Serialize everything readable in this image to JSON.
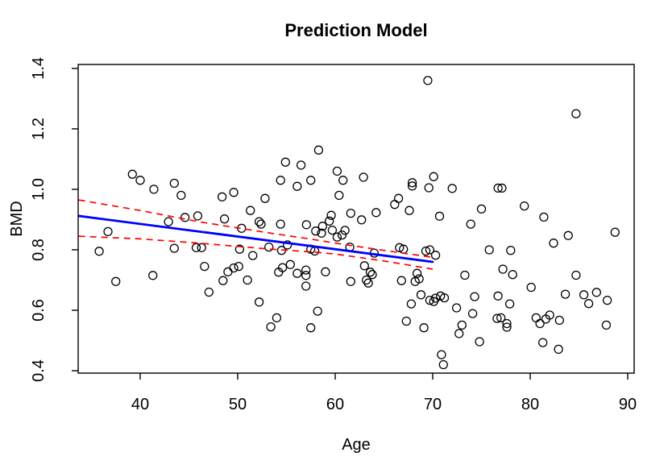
{
  "page": {
    "background": "#ffffff"
  },
  "chart_data": {
    "type": "scatter",
    "title": "Prediction Model",
    "xlabel": "Age",
    "ylabel": "BMD",
    "xlim": [
      33.64,
      90.66
    ],
    "ylim": [
      0.392,
      1.413
    ],
    "grid": false,
    "legend": "none",
    "x_ticks": [
      40,
      50,
      60,
      70,
      80,
      90
    ],
    "x_tick_labels": [
      "40",
      "50",
      "60",
      "70",
      "80",
      "90"
    ],
    "y_ticks": [
      0.4,
      0.6,
      0.8,
      1.0,
      1.2,
      1.4
    ],
    "y_tick_labels": [
      "0.4",
      "0.6",
      "0.8",
      "1.0",
      "1.2",
      "1.4"
    ],
    "marker": {
      "shape": "open-circle",
      "radius": 5,
      "color": "#000000"
    },
    "points": [
      [
        39.2,
        1.05
      ],
      [
        40.0,
        1.03
      ],
      [
        41.4,
        1.0
      ],
      [
        43.5,
        1.02
      ],
      [
        44.2,
        0.98
      ],
      [
        48.4,
        0.975
      ],
      [
        49.6,
        0.99
      ],
      [
        51.3,
        0.93
      ],
      [
        52.8,
        0.97
      ],
      [
        69.5,
        1.36
      ],
      [
        58.3,
        1.13
      ],
      [
        54.9,
        1.09
      ],
      [
        56.5,
        1.08
      ],
      [
        54.4,
        1.03
      ],
      [
        56.1,
        1.01
      ],
      [
        57.5,
        1.03
      ],
      [
        60.2,
        1.06
      ],
      [
        60.8,
        1.03
      ],
      [
        62.9,
        1.04
      ],
      [
        60.4,
        0.98
      ],
      [
        66.5,
        0.97
      ],
      [
        67.9,
        1.022
      ],
      [
        67.9,
        1.011
      ],
      [
        69.6,
        1.005
      ],
      [
        70.1,
        1.042
      ],
      [
        66.1,
        0.95
      ],
      [
        67.6,
        0.93
      ],
      [
        72.0,
        1.003
      ],
      [
        84.7,
        1.25
      ],
      [
        76.7,
        1.004
      ],
      [
        77.1,
        1.004
      ],
      [
        75.0,
        0.935
      ],
      [
        79.4,
        0.945
      ],
      [
        36.7,
        0.86
      ],
      [
        35.8,
        0.795
      ],
      [
        37.5,
        0.695
      ],
      [
        42.9,
        0.893
      ],
      [
        44.6,
        0.907
      ],
      [
        45.9,
        0.912
      ],
      [
        48.65,
        0.902
      ],
      [
        50.4,
        0.871
      ],
      [
        52.4,
        0.885
      ],
      [
        52.2,
        0.893
      ],
      [
        43.5,
        0.805
      ],
      [
        45.75,
        0.807
      ],
      [
        46.3,
        0.807
      ],
      [
        50.2,
        0.802
      ],
      [
        51.55,
        0.781
      ],
      [
        46.6,
        0.745
      ],
      [
        49.0,
        0.727
      ],
      [
        49.6,
        0.74
      ],
      [
        50.1,
        0.745
      ],
      [
        48.5,
        0.698
      ],
      [
        51.0,
        0.7
      ],
      [
        41.3,
        0.715
      ],
      [
        47.05,
        0.66
      ],
      [
        52.2,
        0.627
      ],
      [
        59.6,
        0.914
      ],
      [
        61.6,
        0.921
      ],
      [
        62.7,
        0.899
      ],
      [
        64.2,
        0.923
      ],
      [
        70.7,
        0.911
      ],
      [
        54.4,
        0.885
      ],
      [
        57.05,
        0.883
      ],
      [
        58.7,
        0.878
      ],
      [
        59.4,
        0.895
      ],
      [
        58.0,
        0.862
      ],
      [
        58.6,
        0.855
      ],
      [
        59.7,
        0.865
      ],
      [
        60.2,
        0.842
      ],
      [
        60.7,
        0.849
      ],
      [
        61.0,
        0.864
      ],
      [
        53.2,
        0.809
      ],
      [
        54.5,
        0.798
      ],
      [
        55.1,
        0.816
      ],
      [
        57.5,
        0.802
      ],
      [
        57.9,
        0.796
      ],
      [
        61.5,
        0.809
      ],
      [
        64.0,
        0.789
      ],
      [
        66.6,
        0.807
      ],
      [
        67.0,
        0.802
      ],
      [
        69.3,
        0.796
      ],
      [
        69.7,
        0.8
      ],
      [
        70.3,
        0.782
      ],
      [
        55.4,
        0.751
      ],
      [
        54.6,
        0.741
      ],
      [
        54.2,
        0.726
      ],
      [
        56.1,
        0.722
      ],
      [
        57.0,
        0.733
      ],
      [
        57.0,
        0.715
      ],
      [
        59.0,
        0.727
      ],
      [
        63.0,
        0.747
      ],
      [
        63.6,
        0.726
      ],
      [
        63.8,
        0.718
      ],
      [
        57.0,
        0.68
      ],
      [
        61.6,
        0.695
      ],
      [
        63.2,
        0.7
      ],
      [
        63.4,
        0.69
      ],
      [
        66.8,
        0.698
      ],
      [
        68.2,
        0.695
      ],
      [
        68.6,
        0.704
      ],
      [
        68.4,
        0.722
      ],
      [
        68.8,
        0.651
      ],
      [
        67.8,
        0.621
      ],
      [
        69.7,
        0.633
      ],
      [
        70.1,
        0.629
      ],
      [
        70.3,
        0.64
      ],
      [
        70.8,
        0.647
      ],
      [
        71.2,
        0.641
      ],
      [
        67.3,
        0.564
      ],
      [
        69.1,
        0.542
      ],
      [
        53.4,
        0.545
      ],
      [
        54.0,
        0.575
      ],
      [
        58.2,
        0.597
      ],
      [
        57.5,
        0.542
      ],
      [
        70.9,
        0.453
      ],
      [
        71.1,
        0.42
      ],
      [
        73.9,
        0.885
      ],
      [
        75.8,
        0.8
      ],
      [
        78.0,
        0.798
      ],
      [
        81.4,
        0.908
      ],
      [
        82.4,
        0.822
      ],
      [
        83.9,
        0.847
      ],
      [
        88.7,
        0.858
      ],
      [
        73.3,
        0.716
      ],
      [
        77.2,
        0.736
      ],
      [
        78.2,
        0.718
      ],
      [
        80.1,
        0.676
      ],
      [
        84.7,
        0.716
      ],
      [
        74.3,
        0.645
      ],
      [
        76.7,
        0.647
      ],
      [
        77.9,
        0.621
      ],
      [
        72.45,
        0.608
      ],
      [
        74.1,
        0.589
      ],
      [
        76.6,
        0.573
      ],
      [
        77.0,
        0.575
      ],
      [
        77.6,
        0.556
      ],
      [
        77.6,
        0.544
      ],
      [
        80.6,
        0.575
      ],
      [
        81.0,
        0.556
      ],
      [
        81.6,
        0.571
      ],
      [
        82.0,
        0.584
      ],
      [
        83.0,
        0.567
      ],
      [
        83.6,
        0.653
      ],
      [
        85.5,
        0.651
      ],
      [
        86.0,
        0.622
      ],
      [
        86.8,
        0.659
      ],
      [
        87.9,
        0.633
      ],
      [
        73.0,
        0.551
      ],
      [
        72.7,
        0.523
      ],
      [
        74.8,
        0.496
      ],
      [
        81.3,
        0.493
      ],
      [
        82.9,
        0.471
      ],
      [
        87.8,
        0.551
      ]
    ],
    "regression_line": {
      "name": "fitted line",
      "style": "solid",
      "color": "#0000ff",
      "points": [
        [
          33.7,
          0.912
        ],
        [
          70.0,
          0.76
        ]
      ]
    },
    "ci_upper": {
      "name": "upper confidence band",
      "style": "dashed",
      "color": "#ff0000",
      "points": [
        [
          33.7,
          0.965
        ],
        [
          40,
          0.93
        ],
        [
          46,
          0.893
        ],
        [
          53,
          0.857
        ],
        [
          58,
          0.833
        ],
        [
          60,
          0.822
        ],
        [
          65,
          0.798
        ],
        [
          70,
          0.775
        ]
      ]
    },
    "ci_lower": {
      "name": "lower confidence band",
      "style": "dashed",
      "color": "#ff0000",
      "points": [
        [
          33.7,
          0.845
        ],
        [
          40,
          0.836
        ],
        [
          46,
          0.822
        ],
        [
          53,
          0.803
        ],
        [
          58,
          0.792
        ],
        [
          60,
          0.786
        ],
        [
          65,
          0.763
        ],
        [
          70,
          0.736
        ]
      ]
    },
    "colors": {
      "background": "#ffffff",
      "axis": "#000000",
      "points": "#000000",
      "regression": "#0000ff",
      "confidence_band": "#ff0000"
    }
  }
}
